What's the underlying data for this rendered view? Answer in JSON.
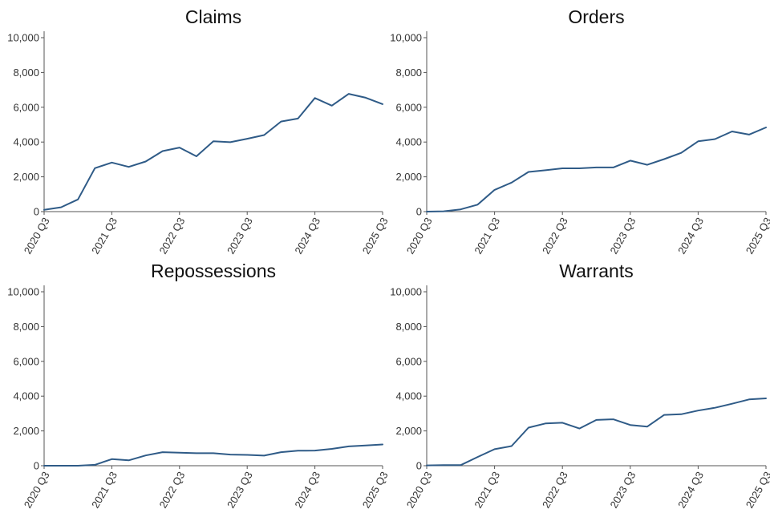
{
  "colors": {
    "series": "#2f5b87",
    "axis": "#555555",
    "text": "#333333"
  },
  "chart_data": [
    {
      "type": "line",
      "title": "Claims",
      "xlabel": "",
      "ylabel": "",
      "ylim": [
        0,
        10000
      ],
      "yticks": [
        0,
        2000,
        4000,
        6000,
        8000,
        10000
      ],
      "ytick_labels": [
        "0",
        "2,000",
        "4,000",
        "6,000",
        "8,000",
        "10,000"
      ],
      "xtick_labels": [
        "2020 Q3",
        "2021 Q3",
        "2022 Q3",
        "2023 Q3",
        "2024 Q3",
        "2025 Q3"
      ],
      "x": [
        "2020 Q3",
        "2020 Q4",
        "2021 Q1",
        "2021 Q2",
        "2021 Q3",
        "2021 Q4",
        "2022 Q1",
        "2022 Q2",
        "2022 Q3",
        "2022 Q4",
        "2023 Q1",
        "2023 Q2",
        "2023 Q3",
        "2023 Q4",
        "2024 Q1",
        "2024 Q2",
        "2024 Q3",
        "2024 Q4",
        "2025 Q1",
        "2025 Q2",
        "2025 Q3"
      ],
      "series": [
        {
          "values": [
            100,
            250,
            700,
            2500,
            2820,
            2570,
            2880,
            3480,
            3680,
            3180,
            4040,
            3990,
            4190,
            4400,
            5180,
            5350,
            6530,
            6090,
            6770,
            6550,
            6180
          ]
        }
      ]
    },
    {
      "type": "line",
      "title": "Orders",
      "xlabel": "",
      "ylabel": "",
      "ylim": [
        0,
        10000
      ],
      "yticks": [
        0,
        2000,
        4000,
        6000,
        8000,
        10000
      ],
      "ytick_labels": [
        "0",
        "2,000",
        "4,000",
        "6,000",
        "8,000",
        "10,000"
      ],
      "xtick_labels": [
        "2020 Q3",
        "2021 Q3",
        "2022 Q3",
        "2023 Q3",
        "2024 Q3",
        "2025 Q3"
      ],
      "x": [
        "2020 Q3",
        "2020 Q4",
        "2021 Q1",
        "2021 Q2",
        "2021 Q3",
        "2021 Q4",
        "2022 Q1",
        "2022 Q2",
        "2022 Q3",
        "2022 Q4",
        "2023 Q1",
        "2023 Q2",
        "2023 Q3",
        "2023 Q4",
        "2024 Q1",
        "2024 Q2",
        "2024 Q3",
        "2024 Q4",
        "2025 Q1",
        "2025 Q2",
        "2025 Q3"
      ],
      "series": [
        {
          "values": [
            0,
            20,
            130,
            400,
            1250,
            1670,
            2280,
            2380,
            2490,
            2490,
            2540,
            2540,
            2930,
            2690,
            3020,
            3380,
            4040,
            4170,
            4610,
            4430,
            4840
          ]
        }
      ]
    },
    {
      "type": "line",
      "title": "Repossessions",
      "xlabel": "",
      "ylabel": "",
      "ylim": [
        0,
        10000
      ],
      "yticks": [
        0,
        2000,
        4000,
        6000,
        8000,
        10000
      ],
      "ytick_labels": [
        "0",
        "2,000",
        "4,000",
        "6,000",
        "8,000",
        "10,000"
      ],
      "xtick_labels": [
        "2020 Q3",
        "2021 Q3",
        "2022 Q3",
        "2023 Q3",
        "2024 Q3",
        "2025 Q3"
      ],
      "x": [
        "2020 Q3",
        "2020 Q4",
        "2021 Q1",
        "2021 Q2",
        "2021 Q3",
        "2021 Q4",
        "2022 Q1",
        "2022 Q2",
        "2022 Q3",
        "2022 Q4",
        "2023 Q1",
        "2023 Q2",
        "2023 Q3",
        "2023 Q4",
        "2024 Q1",
        "2024 Q2",
        "2024 Q3",
        "2024 Q4",
        "2025 Q1",
        "2025 Q2",
        "2025 Q3"
      ],
      "series": [
        {
          "values": [
            0,
            0,
            0,
            50,
            380,
            310,
            590,
            780,
            750,
            720,
            720,
            640,
            620,
            580,
            780,
            860,
            870,
            970,
            1110,
            1160,
            1220
          ]
        }
      ]
    },
    {
      "type": "line",
      "title": "Warrants",
      "xlabel": "",
      "ylabel": "",
      "ylim": [
        0,
        10000
      ],
      "yticks": [
        0,
        2000,
        4000,
        6000,
        8000,
        10000
      ],
      "ytick_labels": [
        "0",
        "2,000",
        "4,000",
        "6,000",
        "8,000",
        "10,000"
      ],
      "xtick_labels": [
        "2020 Q3",
        "2021 Q3",
        "2022 Q3",
        "2023 Q3",
        "2024 Q3",
        "2025 Q3"
      ],
      "x": [
        "2020 Q3",
        "2020 Q4",
        "2021 Q1",
        "2021 Q2",
        "2021 Q3",
        "2021 Q4",
        "2022 Q1",
        "2022 Q2",
        "2022 Q3",
        "2022 Q4",
        "2023 Q1",
        "2023 Q2",
        "2023 Q3",
        "2023 Q4",
        "2024 Q1",
        "2024 Q2",
        "2024 Q3",
        "2024 Q4",
        "2025 Q1",
        "2025 Q2",
        "2025 Q3"
      ],
      "series": [
        {
          "values": [
            20,
            30,
            30,
            500,
            950,
            1130,
            2190,
            2430,
            2470,
            2140,
            2630,
            2670,
            2340,
            2250,
            2920,
            2960,
            3170,
            3330,
            3560,
            3810,
            3870
          ]
        }
      ]
    }
  ]
}
